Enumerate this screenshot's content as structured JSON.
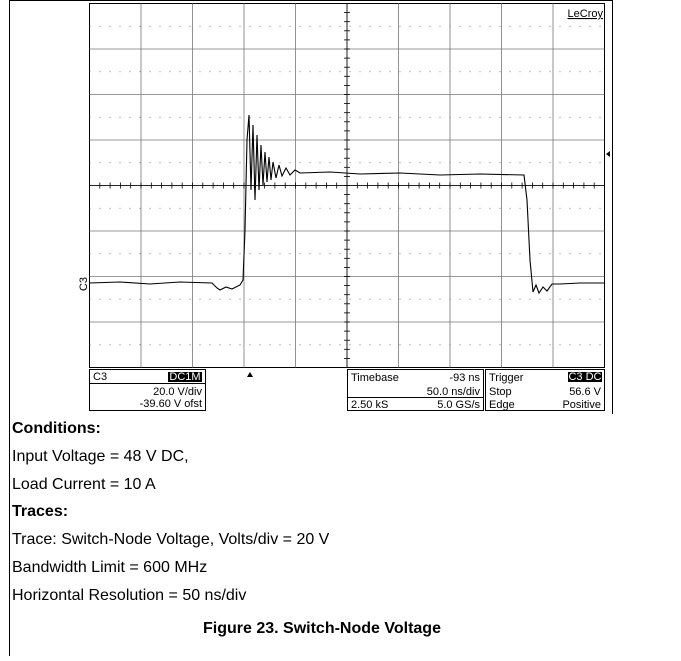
{
  "scope": {
    "brand": "LeCroy",
    "trace_marker": "C3",
    "channel": {
      "name": "C3",
      "coupling": "DC1M",
      "scale": "20.0 V/div",
      "offset": "-39.60 V ofst"
    },
    "timebase": {
      "label": "Timebase",
      "delay": "-93 ns",
      "scale": "50.0 ns/div",
      "samples": "2.50 kS",
      "rate": "5.0 GS/s"
    },
    "trigger": {
      "label": "Trigger",
      "source": "C3 DC",
      "mode": "Stop",
      "level": "56.6 V",
      "type": "Edge",
      "slope": "Positive"
    }
  },
  "conditions": {
    "heading": "Conditions:",
    "lines": [
      "Input Voltage = 48 V DC,",
      "Load Current = 10 A"
    ]
  },
  "traces": {
    "heading": "Traces:",
    "lines": [
      "Trace: Switch-Node Voltage, Volts/div = 20 V",
      "Bandwidth Limit = 600 MHz",
      "Horizontal Resolution = 50 ns/div"
    ]
  },
  "caption": "Figure 23. Switch-Node Voltage"
}
